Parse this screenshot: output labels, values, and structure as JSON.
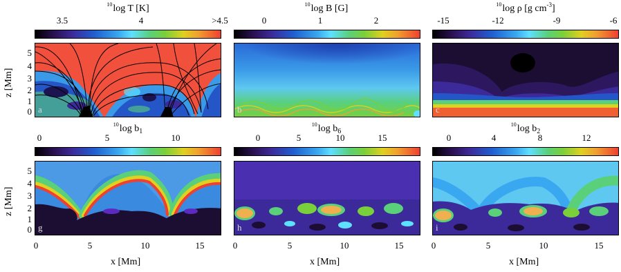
{
  "colorbars": [
    {
      "title_pre": "10",
      "title_main": "log T [K]",
      "title_exp": "",
      "title_sub": "",
      "ticks": [
        "3.5",
        "4",
        ">4.5"
      ],
      "colormap": "rainbow"
    },
    {
      "title_pre": "10",
      "title_main": "log B [G]",
      "title_exp": "",
      "title_sub": "",
      "ticks": [
        "0",
        "1",
        "2"
      ],
      "colormap": "rainbow"
    },
    {
      "title_pre": "10",
      "title_main": "log ρ [g cm",
      "title_exp": "-3",
      "title_after": "]",
      "title_sub": "",
      "ticks": [
        "-15",
        "-12",
        "-9",
        "-6"
      ],
      "colormap": "rainbow"
    },
    {
      "title_pre": "10",
      "title_main": "log b",
      "title_exp": "",
      "title_sub": "1",
      "ticks": [
        "0",
        "5",
        "10"
      ],
      "colormap": "rainbow"
    },
    {
      "title_pre": "10",
      "title_main": "log b",
      "title_exp": "",
      "title_sub": "6",
      "ticks": [
        "0",
        "5",
        "10",
        "15"
      ],
      "colormap": "rainbow"
    },
    {
      "title_pre": "10",
      "title_main": "log b",
      "title_exp": "",
      "title_sub": "2",
      "ticks": [
        "0",
        "4",
        "8",
        "12"
      ],
      "colormap": "rainbow"
    }
  ],
  "panels": [
    {
      "letter": "a",
      "name": "temperature"
    },
    {
      "letter": "b",
      "name": "magnetic-field"
    },
    {
      "letter": "c",
      "name": "density"
    },
    {
      "letter": "g",
      "name": "b1"
    },
    {
      "letter": "h",
      "name": "b6"
    },
    {
      "letter": "i",
      "name": "b2"
    }
  ],
  "y_axis": {
    "title": "z [Mm]",
    "ticks": [
      "5",
      "4",
      "3",
      "2",
      "1",
      "0"
    ]
  },
  "x_axis": {
    "title": "x [Mm]",
    "ticks": [
      "0",
      "5",
      "10",
      "15"
    ]
  },
  "colors": {
    "background": "#ffffff",
    "frame": "#000000",
    "coronal_red": "#f0503c",
    "deep_purple": "#1c0d33"
  }
}
